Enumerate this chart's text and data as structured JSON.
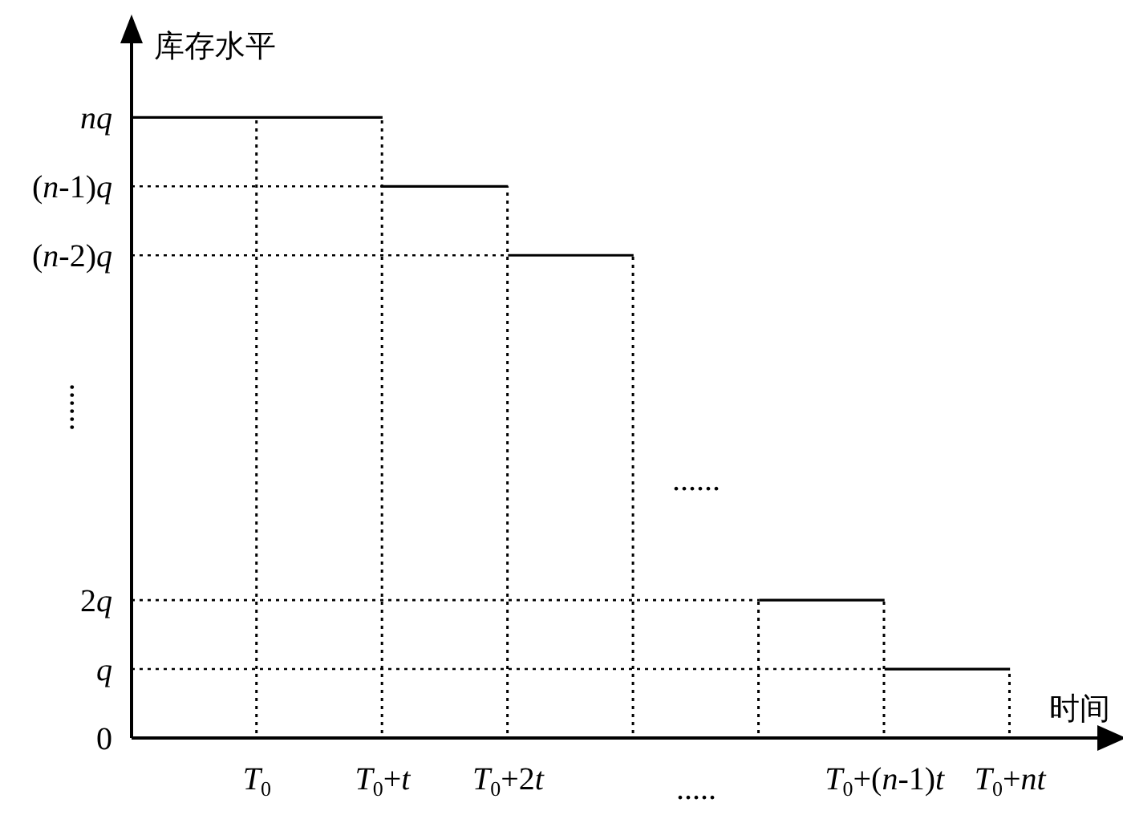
{
  "chart_data": {
    "type": "line",
    "xlabel": "时间",
    "ylabel": "库存水平",
    "categories": [
      null,
      "T$_{0}$",
      "T$_{0}$+t",
      "T$_{0}$+2t",
      null,
      null,
      "T$_{0}$+(n-1)t",
      "T$_{0}$+nt"
    ],
    "series": [
      {
        "color": "#000000",
        "values": [
          9,
          9,
          9,
          null,
          null,
          null,
          null,
          null
        ]
      },
      {
        "color": "#000000",
        "values": [
          null,
          null,
          8,
          8,
          null,
          null,
          null,
          null
        ]
      },
      {
        "color": "#000000",
        "values": [
          null,
          null,
          null,
          7,
          7,
          null,
          null,
          null
        ]
      },
      {
        "color": "#000000",
        "values": [
          null,
          null,
          null,
          null,
          null,
          2,
          2,
          null
        ]
      },
      {
        "color": "#000000",
        "values": [
          null,
          null,
          null,
          null,
          null,
          null,
          1,
          1
        ]
      },
      {
        "color": "#000000",
        "line_style": "dotted",
        "values": [
          8,
          8,
          8,
          null,
          null,
          null,
          null,
          null
        ]
      },
      {
        "color": "#000000",
        "line_style": "dotted",
        "values": [
          7,
          7,
          7,
          7,
          null,
          null,
          null,
          null
        ]
      },
      {
        "color": "#000000",
        "line_style": "dotted",
        "values": [
          2,
          2,
          2,
          2,
          2,
          2,
          null,
          null
        ]
      },
      {
        "color": "#000000",
        "line_style": "dotted",
        "values": [
          1,
          1,
          1,
          1,
          1,
          1,
          1,
          null
        ]
      },
      {
        "type": "bar",
        "color": "#000000",
        "line_style": "dotted",
        "values": [
          null,
          9,
          9,
          8,
          7,
          2,
          2,
          1
        ]
      }
    ],
    "ylim": [
      0,
      10.4
    ],
    "yticks": [
      0,
      {
        "value": 1,
        "label": "q"
      },
      {
        "value": 2,
        "label": "2q"
      },
      {
        "value": 7,
        "label": "(n-2)q"
      },
      {
        "value": 8,
        "label": "(n-1)q"
      },
      {
        "value": 9,
        "label": "nq"
      }
    ],
    "annotations": [
      "......",
      ".....",
      "......"
    ]
  }
}
